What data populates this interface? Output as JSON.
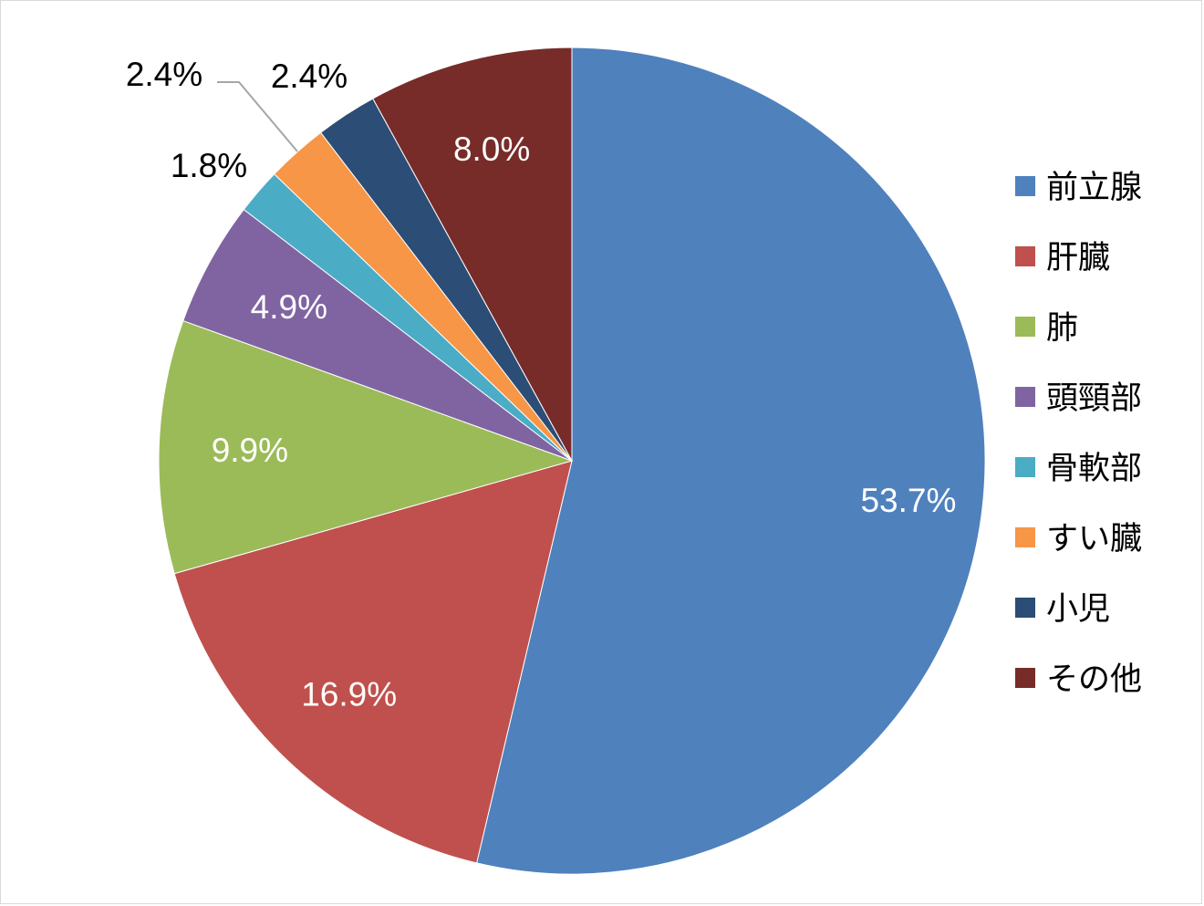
{
  "chart_data": {
    "type": "pie",
    "start_angle_deg": 0,
    "direction": "clockwise",
    "legend_position": "right",
    "slices": [
      {
        "label": "前立腺",
        "value": 53.7,
        "display": "53.7%",
        "color": "#4f81bd",
        "label_color": "#ffffff"
      },
      {
        "label": "肝臓",
        "value": 16.9,
        "display": "16.9%",
        "color": "#c0504d",
        "label_color": "#ffffff"
      },
      {
        "label": "肺",
        "value": 9.9,
        "display": "9.9%",
        "color": "#9bbb59",
        "label_color": "#ffffff"
      },
      {
        "label": "頭頸部",
        "value": 4.9,
        "display": "4.9%",
        "color": "#8064a2",
        "label_color": "#ffffff"
      },
      {
        "label": "骨軟部",
        "value": 1.8,
        "display": "1.8%",
        "color": "#4bacc6",
        "label_color": "#000000"
      },
      {
        "label": "すい臓",
        "value": 2.4,
        "display": "2.4%",
        "color": "#f79646",
        "label_color": "#000000"
      },
      {
        "label": "小児",
        "value": 2.4,
        "display": "2.4%",
        "color": "#2c4d75",
        "label_color": "#000000"
      },
      {
        "label": "その他",
        "value": 8.0,
        "display": "8.0%",
        "color": "#772c2a",
        "label_color": "#ffffff"
      }
    ]
  }
}
